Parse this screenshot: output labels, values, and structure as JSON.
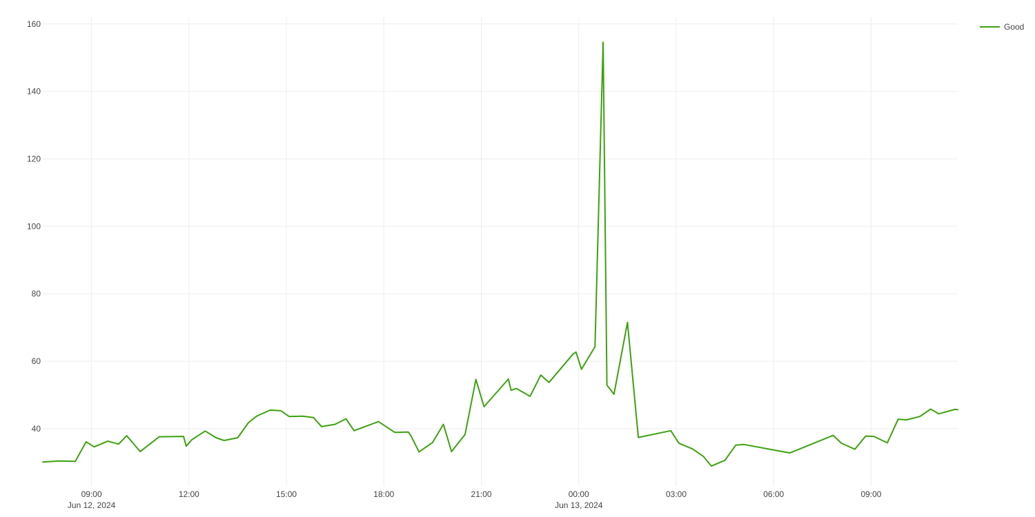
{
  "chart_data": {
    "type": "line",
    "title": "",
    "xlabel": "",
    "ylabel": "",
    "ylim": [
      23,
      162
    ],
    "xlim": [
      "2024-06-12 07:30",
      "2024-06-13 11:40"
    ],
    "grid": true,
    "legend_position": "top-right",
    "y_ticks": [
      40,
      60,
      80,
      100,
      120,
      140,
      160
    ],
    "x_ticks": [
      {
        "time": "2024-06-12 09:00",
        "label": "09:00",
        "sublabel": "Jun 12, 2024"
      },
      {
        "time": "2024-06-12 12:00",
        "label": "12:00",
        "sublabel": ""
      },
      {
        "time": "2024-06-12 15:00",
        "label": "15:00",
        "sublabel": ""
      },
      {
        "time": "2024-06-12 18:00",
        "label": "18:00",
        "sublabel": ""
      },
      {
        "time": "2024-06-12 21:00",
        "label": "21:00",
        "sublabel": ""
      },
      {
        "time": "2024-06-13 00:00",
        "label": "00:00",
        "sublabel": "Jun 13, 2024"
      },
      {
        "time": "2024-06-13 03:00",
        "label": "03:00",
        "sublabel": ""
      },
      {
        "time": "2024-06-13 06:00",
        "label": "06:00",
        "sublabel": ""
      },
      {
        "time": "2024-06-13 09:00",
        "label": "09:00",
        "sublabel": ""
      }
    ],
    "series": [
      {
        "name": "Good",
        "color": "#3ca10f",
        "x": [
          "2024-06-12 07:30",
          "2024-06-12 08:00",
          "2024-06-12 08:30",
          "2024-06-12 08:50",
          "2024-06-12 09:05",
          "2024-06-12 09:30",
          "2024-06-12 09:50",
          "2024-06-12 10:05",
          "2024-06-12 10:30",
          "2024-06-12 11:05",
          "2024-06-12 11:50",
          "2024-06-12 11:55",
          "2024-06-12 12:05",
          "2024-06-12 12:30",
          "2024-06-12 12:50",
          "2024-06-12 13:05",
          "2024-06-12 13:30",
          "2024-06-12 13:50",
          "2024-06-12 14:05",
          "2024-06-12 14:30",
          "2024-06-12 14:50",
          "2024-06-12 15:05",
          "2024-06-12 15:30",
          "2024-06-12 15:50",
          "2024-06-12 16:05",
          "2024-06-12 16:30",
          "2024-06-12 16:50",
          "2024-06-12 17:05",
          "2024-06-12 17:50",
          "2024-06-12 18:20",
          "2024-06-12 18:45",
          "2024-06-12 18:50",
          "2024-06-12 19:05",
          "2024-06-12 19:30",
          "2024-06-12 19:50",
          "2024-06-12 20:05",
          "2024-06-12 20:30",
          "2024-06-12 20:50",
          "2024-06-12 21:05",
          "2024-06-12 21:50",
          "2024-06-12 21:55",
          "2024-06-12 22:05",
          "2024-06-12 22:30",
          "2024-06-12 22:50",
          "2024-06-12 23:05",
          "2024-06-12 23:50",
          "2024-06-12 23:55",
          "2024-06-13 00:05",
          "2024-06-13 00:30",
          "2024-06-13 00:45",
          "2024-06-13 00:52",
          "2024-06-13 01:05",
          "2024-06-13 01:30",
          "2024-06-13 01:50",
          "2024-06-13 02:50",
          "2024-06-13 03:05",
          "2024-06-13 03:30",
          "2024-06-13 03:50",
          "2024-06-13 04:05",
          "2024-06-13 04:30",
          "2024-06-13 04:50",
          "2024-06-13 05:05",
          "2024-06-13 06:30",
          "2024-06-13 07:50",
          "2024-06-13 08:05",
          "2024-06-13 08:30",
          "2024-06-13 08:50",
          "2024-06-13 09:05",
          "2024-06-13 09:30",
          "2024-06-13 09:50",
          "2024-06-13 10:05",
          "2024-06-13 10:30",
          "2024-06-13 10:50",
          "2024-06-13 11:05",
          "2024-06-13 11:35",
          "2024-06-13 11:40"
        ],
        "values": [
          30.1,
          30.4,
          30.3,
          36.1,
          34.6,
          36.3,
          35.4,
          37.9,
          33.2,
          37.6,
          37.7,
          34.8,
          36.7,
          39.3,
          37.3,
          36.5,
          37.3,
          41.8,
          43.7,
          45.5,
          45.3,
          43.6,
          43.7,
          43.3,
          40.6,
          41.3,
          42.9,
          39.4,
          42.1,
          38.9,
          39.0,
          37.9,
          33.1,
          35.9,
          41.3,
          33.2,
          38.3,
          54.6,
          46.5,
          54.7,
          51.4,
          51.9,
          49.6,
          55.9,
          53.7,
          62.2,
          62.7,
          57.6,
          64.3,
          154.6,
          52.9,
          50.2,
          71.5,
          37.4,
          39.4,
          35.7,
          34.0,
          31.8,
          28.9,
          30.6,
          35.1,
          35.3,
          32.8,
          38.0,
          35.7,
          33.9,
          37.8,
          37.7,
          35.8,
          42.8,
          42.6,
          43.6,
          45.8,
          44.4,
          45.7,
          45.6
        ]
      }
    ]
  }
}
